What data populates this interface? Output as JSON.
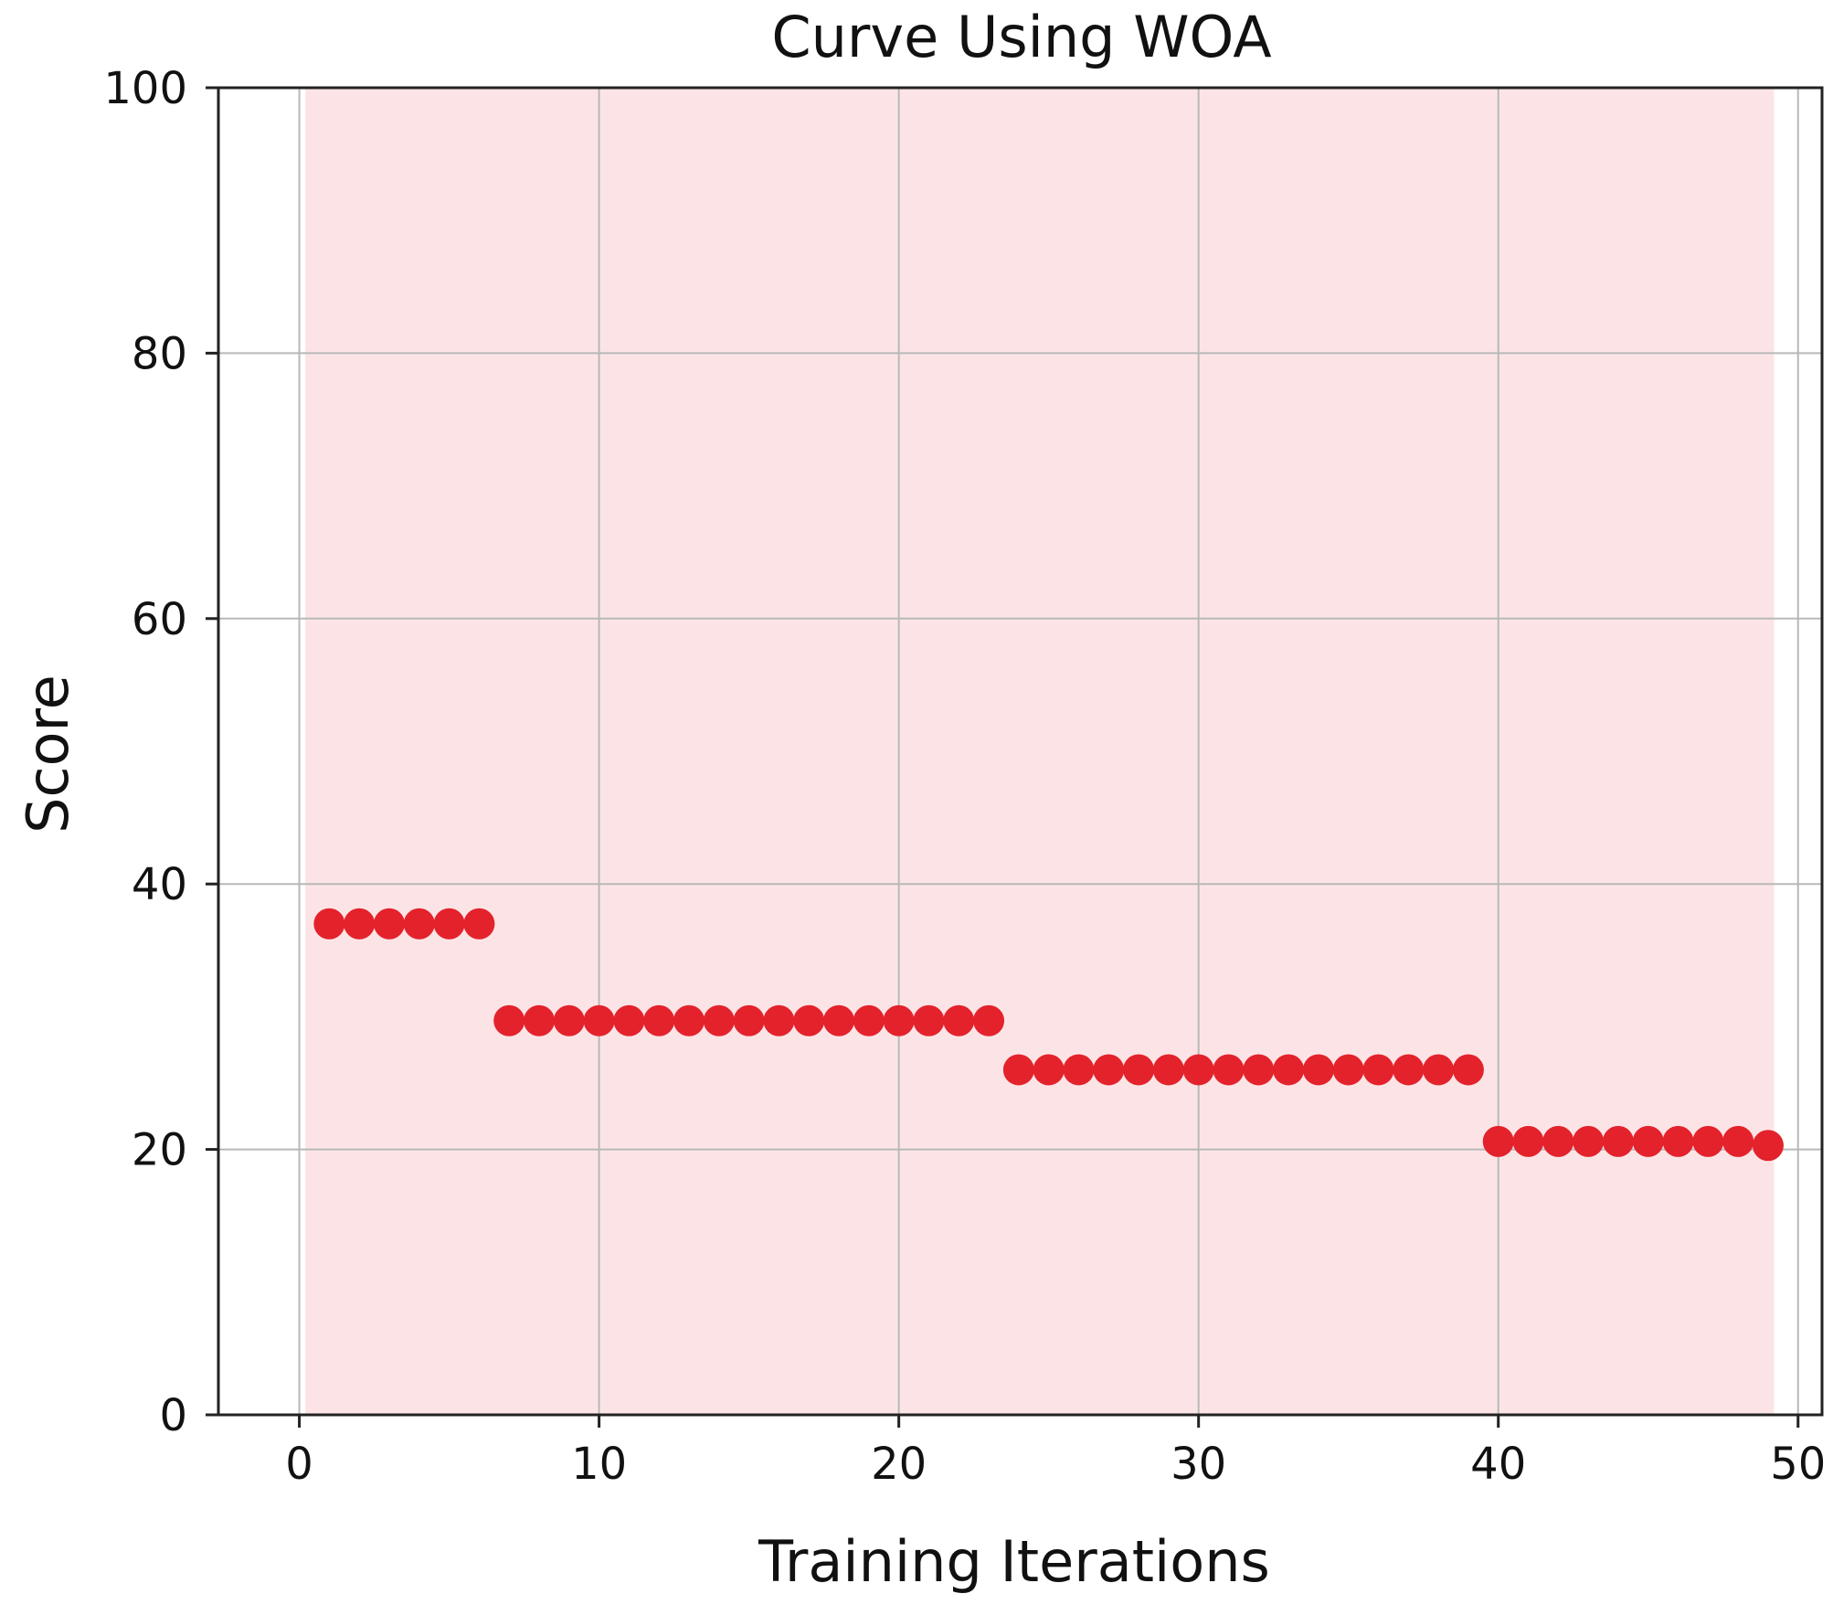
{
  "chart_data": {
    "type": "scatter",
    "title": "Curve Using WOA",
    "xlabel": "Training Iterations",
    "ylabel": "Score",
    "xlim": [
      -2.7,
      50.8
    ],
    "ylim": [
      0,
      100
    ],
    "xticks": [
      0,
      10,
      20,
      30,
      40,
      50
    ],
    "yticks": [
      0,
      20,
      40,
      60,
      80,
      100
    ],
    "grid": true,
    "shaded_region": {
      "x_start": 0.2,
      "x_end": 49.2,
      "color": "#fce4e6"
    },
    "marker_color": "#e3222b",
    "series": [
      {
        "x": [
          1,
          2,
          3,
          4,
          5,
          6,
          7,
          8,
          9,
          10,
          11,
          12,
          13,
          14,
          15,
          16,
          17,
          18,
          19,
          20,
          21,
          22,
          23,
          24,
          25,
          26,
          27,
          28,
          29,
          30,
          31,
          32,
          33,
          34,
          35,
          36,
          37,
          38,
          39,
          40,
          41,
          42,
          43,
          44,
          45,
          46,
          47,
          48,
          49
        ],
        "y": [
          37,
          37,
          37,
          37,
          37,
          37,
          29.7,
          29.7,
          29.7,
          29.7,
          29.7,
          29.7,
          29.7,
          29.7,
          29.7,
          29.7,
          29.7,
          29.7,
          29.7,
          29.7,
          29.7,
          29.7,
          29.7,
          26,
          26,
          26,
          26,
          26,
          26,
          26,
          26,
          26,
          26,
          26,
          26,
          26,
          26,
          26,
          26,
          20.6,
          20.6,
          20.6,
          20.6,
          20.6,
          20.6,
          20.6,
          20.6,
          20.6,
          20.3
        ]
      }
    ]
  }
}
